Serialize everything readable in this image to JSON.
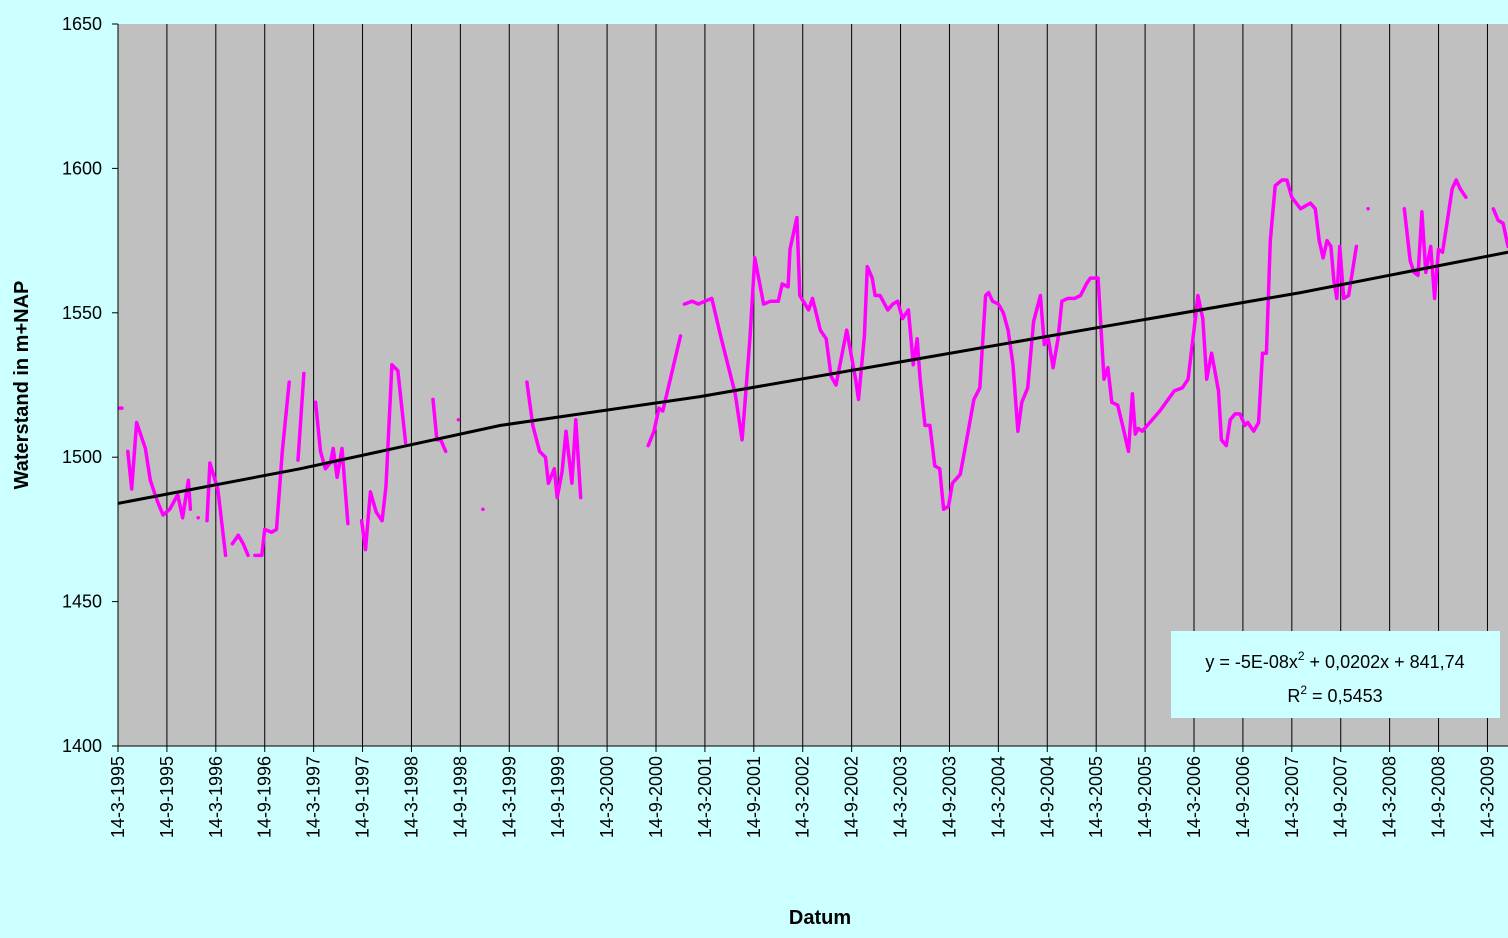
{
  "chart_data": {
    "type": "line",
    "x_label": "Datum",
    "y_label": "Waterstand in m+NAP",
    "ylim": [
      1400,
      1650
    ],
    "yticks": [
      1400,
      1450,
      1500,
      1550,
      1600,
      1650
    ],
    "xlim": [
      1995.2,
      2009.41
    ],
    "xticks": [
      {
        "value": 1995.2,
        "label": "14-3-1995"
      },
      {
        "value": 1995.7,
        "label": "14-9-1995"
      },
      {
        "value": 1996.2,
        "label": "14-3-1996"
      },
      {
        "value": 1996.7,
        "label": "14-9-1996"
      },
      {
        "value": 1997.2,
        "label": "14-3-1997"
      },
      {
        "value": 1997.7,
        "label": "14-9-1997"
      },
      {
        "value": 1998.2,
        "label": "14-3-1998"
      },
      {
        "value": 1998.7,
        "label": "14-9-1998"
      },
      {
        "value": 1999.2,
        "label": "14-3-1999"
      },
      {
        "value": 1999.7,
        "label": "14-9-1999"
      },
      {
        "value": 2000.2,
        "label": "14-3-2000"
      },
      {
        "value": 2000.7,
        "label": "14-9-2000"
      },
      {
        "value": 2001.2,
        "label": "14-3-2001"
      },
      {
        "value": 2001.7,
        "label": "14-9-2001"
      },
      {
        "value": 2002.2,
        "label": "14-3-2002"
      },
      {
        "value": 2002.7,
        "label": "14-9-2002"
      },
      {
        "value": 2003.2,
        "label": "14-3-2003"
      },
      {
        "value": 2003.7,
        "label": "14-9-2003"
      },
      {
        "value": 2004.2,
        "label": "14-3-2004"
      },
      {
        "value": 2004.7,
        "label": "14-9-2004"
      },
      {
        "value": 2005.2,
        "label": "14-3-2005"
      },
      {
        "value": 2005.7,
        "label": "14-9-2005"
      },
      {
        "value": 2006.2,
        "label": "14-3-2006"
      },
      {
        "value": 2006.7,
        "label": "14-9-2006"
      },
      {
        "value": 2007.2,
        "label": "14-3-2007"
      },
      {
        "value": 2007.7,
        "label": "14-9-2007"
      },
      {
        "value": 2008.2,
        "label": "14-3-2008"
      },
      {
        "value": 2008.7,
        "label": "14-9-2008"
      },
      {
        "value": 2009.2,
        "label": "14-3-2009"
      }
    ],
    "grid_x": true,
    "plot_background": "#c0c0c0",
    "series": [
      {
        "color": "#ff00ff",
        "x": [
          1995.2,
          1995.24,
          null,
          1995.3,
          1995.34,
          1995.39,
          1995.48,
          1995.53,
          1995.6,
          1995.66,
          1995.73,
          1995.81,
          1995.86,
          1995.92,
          1995.94,
          null,
          1996.02,
          null,
          1996.11,
          1996.14,
          1996.22,
          1996.3,
          null,
          1996.37,
          1996.43,
          1996.48,
          1996.53,
          null,
          1996.6,
          1996.67,
          1996.7,
          1996.77,
          1996.82,
          1996.88,
          1996.95,
          null,
          1997.04,
          1997.1,
          null,
          1997.22,
          1997.27,
          1997.32,
          1997.37,
          1997.4,
          1997.44,
          1997.49,
          1997.55,
          null,
          1997.69,
          1997.73,
          1997.78,
          1997.84,
          1997.9,
          1997.94,
          1998.0,
          1998.06,
          1998.14,
          null,
          1998.42,
          1998.46,
          1998.5,
          1998.55,
          null,
          1998.68,
          null,
          1998.93,
          null,
          1999.38,
          1999.44,
          1999.51,
          1999.57,
          1999.6,
          1999.66,
          1999.69,
          1999.74,
          1999.78,
          1999.84,
          1999.88,
          1999.93,
          null,
          2000.62,
          2000.68,
          2000.73,
          2000.77,
          2000.95,
          null,
          2000.99,
          2001.07,
          2001.13,
          2001.27,
          2001.36,
          2001.51,
          2001.58,
          2001.66,
          2001.71,
          2001.8,
          2001.87,
          2001.95,
          2001.99,
          2002.05,
          2002.07,
          2002.14,
          2002.17,
          2002.26,
          2002.3,
          2002.38,
          2002.44,
          2002.49,
          2002.54,
          2002.61,
          2002.65,
          2002.74,
          2002.77,
          2002.83,
          2002.86,
          2002.91,
          2002.94,
          2002.99,
          2003.07,
          2003.12,
          2003.17,
          2003.22,
          2003.28,
          2003.33,
          2003.37,
          2003.4,
          2003.45,
          2003.5,
          2003.55,
          2003.6,
          2003.64,
          2003.69,
          2003.73,
          2003.81,
          2003.87,
          2003.95,
          2004.01,
          2004.07,
          2004.1,
          2004.14,
          2004.2,
          2004.25,
          2004.3,
          2004.35,
          2004.4,
          2004.44,
          2004.5,
          2004.56,
          2004.63,
          2004.67,
          2004.71,
          2004.76,
          2004.81,
          2004.85,
          2004.91,
          2004.98,
          2005.04,
          2005.1,
          2005.14,
          2005.22,
          2005.28,
          2005.32,
          2005.36,
          2005.42,
          2005.47,
          2005.53,
          2005.57,
          2005.6,
          2005.63,
          2005.67,
          2005.85,
          2006.0,
          2006.08,
          2006.14,
          2006.21,
          2006.24,
          2006.29,
          2006.33,
          2006.38,
          2006.45,
          2006.48,
          2006.53,
          2006.57,
          2006.62,
          2006.67,
          2006.72,
          2006.75,
          2006.81,
          2006.86,
          2006.9,
          2006.94,
          2006.98,
          2007.03,
          2007.1,
          2007.15,
          2007.2,
          2007.29,
          2007.34,
          2007.39,
          2007.44,
          2007.48,
          2007.52,
          2007.56,
          2007.6,
          2007.63,
          2007.66,
          2007.69,
          2007.73,
          2007.78,
          2007.86,
          null,
          2007.98,
          null,
          2008.35,
          2008.41,
          2008.45,
          2008.49,
          2008.53,
          2008.57,
          2008.62,
          2008.66,
          2008.7,
          2008.74,
          2008.79,
          2008.84,
          2008.88,
          2008.92,
          2008.98,
          null,
          2009.26,
          2009.31,
          2009.36,
          2009.41
        ],
        "values": [
          1517,
          1517,
          null,
          1502,
          1489,
          1512,
          1503,
          1492,
          1485,
          1480,
          1482,
          1487,
          1479,
          1492,
          1482,
          null,
          1479,
          null,
          1478,
          1498,
          1489,
          1466,
          null,
          1470,
          1473,
          1470,
          1466,
          null,
          1466,
          1466,
          1475,
          1474,
          1475,
          1502,
          1526,
          null,
          1499,
          1529,
          null,
          1519,
          1502,
          1496,
          1498,
          1503,
          1493,
          1503,
          1477,
          null,
          1478,
          1468,
          1488,
          1481,
          1478,
          1490,
          1532,
          1530,
          1505,
          null,
          1520,
          1506,
          1506,
          1502,
          null,
          1513,
          null,
          1482,
          null,
          1526,
          1511,
          1502,
          1500,
          1491,
          1496,
          1486,
          1495,
          1509,
          1491,
          1513,
          1486,
          null,
          1504,
          1509,
          1517,
          1516,
          1542,
          null,
          1553,
          1554,
          1553,
          1555,
          1542,
          1522,
          1506,
          1541,
          1569,
          1553,
          1554,
          1554,
          1560,
          1559,
          1572,
          1583,
          1556,
          1551,
          1555,
          1544,
          1541,
          1528,
          1525,
          1537,
          1544,
          1527,
          1520,
          1542,
          1566,
          1562,
          1556,
          1556,
          1551,
          1553,
          1554,
          1548,
          1551,
          1532,
          1541,
          1527,
          1511,
          1511,
          1497,
          1496,
          1482,
          1483,
          1491,
          1494,
          1505,
          1520,
          1524,
          1556,
          1557,
          1554,
          1553,
          1550,
          1544,
          1532,
          1509,
          1519,
          1524,
          1547,
          1556,
          1539,
          1541,
          1531,
          1541,
          1554,
          1555,
          1555,
          1556,
          1560,
          1562,
          1562,
          1527,
          1531,
          1519,
          1518,
          1511,
          1502,
          1522,
          1508,
          1510,
          1509,
          1516,
          1523,
          1524,
          1527,
          1547,
          1556,
          1548,
          1527,
          1536,
          1523,
          1506,
          1504,
          1513,
          1515,
          1515,
          1511,
          1512,
          1509,
          1512,
          1536,
          1536,
          1575,
          1594,
          1596,
          1596,
          1590,
          1586,
          1587,
          1588,
          1586,
          1575,
          1569,
          1575,
          1573,
          1561,
          1555,
          1573,
          1555,
          1556,
          1573,
          null,
          1586,
          null,
          1586,
          1568,
          1564,
          1563,
          1585,
          1564,
          1573,
          1555,
          1572,
          1571,
          1582,
          1593,
          1596,
          1593,
          1590,
          null,
          1586,
          1582,
          1581,
          1573
        ]
      },
      {
        "color": "#000000",
        "x": [
          1995.2,
          1997.06,
          1999.11,
          2001.15,
          2003.2,
          2005.24,
          2007.29,
          2009.41
        ],
        "values": [
          1484,
          1496,
          1511,
          1521,
          1533,
          1545,
          1557,
          1571
        ]
      }
    ],
    "annotation": {
      "equation": {
        "lead": "y = -5E-08x",
        "sup": "2",
        "tail": "+ 0,0202x + 841,74"
      },
      "r2": {
        "lead": "R",
        "sup": "2",
        "tail": "= 0,5453"
      }
    }
  }
}
